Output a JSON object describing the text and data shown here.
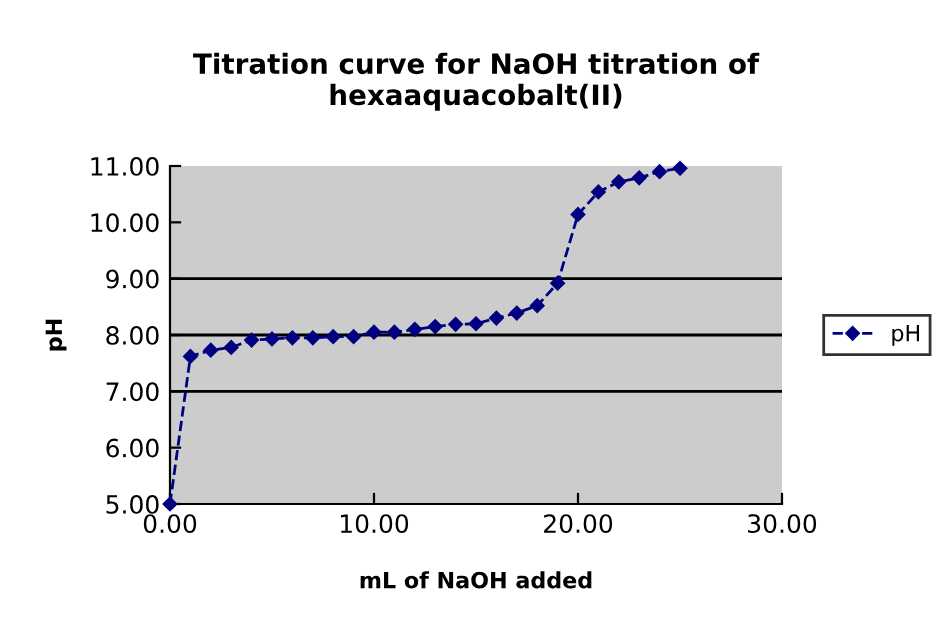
{
  "chart_data": {
    "type": "line",
    "title": "Titration curve for NaOH titration of\nhexaaquacobalt(II)",
    "xlabel": "mL of NaOH added",
    "ylabel": "pH",
    "x": [
      0,
      1,
      2,
      3,
      4,
      5,
      6,
      7,
      8,
      9,
      10,
      11,
      12,
      13,
      14,
      15,
      16,
      17,
      18,
      19,
      20,
      21,
      22,
      23,
      24,
      25
    ],
    "series": [
      {
        "name": "pH",
        "color": "#000080",
        "values": [
          5.0,
          7.62,
          7.73,
          7.78,
          7.91,
          7.93,
          7.95,
          7.95,
          7.97,
          7.97,
          8.05,
          8.05,
          8.1,
          8.15,
          8.19,
          8.2,
          8.3,
          8.39,
          8.52,
          8.92,
          10.14,
          10.54,
          10.72,
          10.79,
          10.9,
          10.96
        ]
      }
    ],
    "xlim": [
      0,
      30
    ],
    "xticks": [
      {
        "value": 0,
        "label": "0.00"
      },
      {
        "value": 10,
        "label": "10.00"
      },
      {
        "value": 20,
        "label": "20.00"
      },
      {
        "value": 30,
        "label": "30.00"
      }
    ],
    "ylim": [
      5,
      11
    ],
    "yticks": [
      {
        "value": 5,
        "label": "5.00"
      },
      {
        "value": 6,
        "label": "6.00"
      },
      {
        "value": 7,
        "label": "7.00"
      },
      {
        "value": 8,
        "label": "8.00"
      },
      {
        "value": 9,
        "label": "9.00"
      },
      {
        "value": 10,
        "label": "10.00"
      },
      {
        "value": 11,
        "label": "11.00"
      }
    ],
    "ref_lines": [
      {
        "axis": "y",
        "value": 7,
        "color": "#000000"
      },
      {
        "axis": "y",
        "value": 8,
        "color": "#000000"
      },
      {
        "axis": "y",
        "value": 9,
        "color": "#000000"
      }
    ],
    "legend": "right",
    "marker": "diamond",
    "line_style": "dashed",
    "grid": false
  }
}
